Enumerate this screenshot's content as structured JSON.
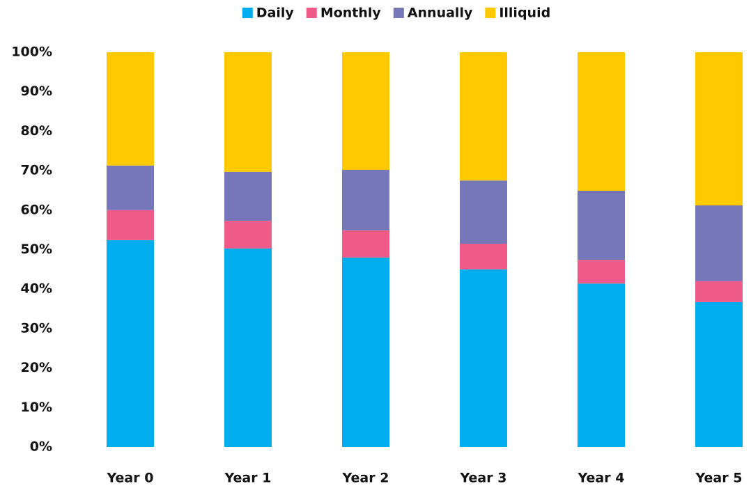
{
  "chart_data": {
    "type": "stacked-bar",
    "categories": [
      "Year 0",
      "Year 1",
      "Year 2",
      "Year 3",
      "Year 4",
      "Year 5"
    ],
    "series": [
      {
        "name": "Daily",
        "color": "#00adee",
        "values": [
          52.4,
          50.3,
          48.0,
          45.0,
          41.4,
          36.7
        ]
      },
      {
        "name": "Monthly",
        "color": "#f05a88",
        "values": [
          7.6,
          7.0,
          6.9,
          6.5,
          6.0,
          5.3
        ]
      },
      {
        "name": "Annually",
        "color": "#7677b8",
        "values": [
          11.3,
          12.4,
          15.3,
          16.0,
          17.5,
          19.2
        ]
      },
      {
        "name": "Illiquid",
        "color": "#ffc800",
        "values": [
          28.7,
          30.3,
          29.8,
          32.5,
          35.1,
          38.8
        ]
      }
    ],
    "ylim": [
      0,
      100
    ],
    "yticks": [
      {
        "value": 0,
        "label": "0%"
      },
      {
        "value": 10,
        "label": "10%"
      },
      {
        "value": 20,
        "label": "20%"
      },
      {
        "value": 30,
        "label": "30%"
      },
      {
        "value": 40,
        "label": "40%"
      },
      {
        "value": 50,
        "label": "50%"
      },
      {
        "value": 60,
        "label": "60%"
      },
      {
        "value": 70,
        "label": "70%"
      },
      {
        "value": 80,
        "label": "80%"
      },
      {
        "value": 90,
        "label": "90%"
      },
      {
        "value": 100,
        "label": "100%"
      }
    ],
    "legend": "top"
  }
}
